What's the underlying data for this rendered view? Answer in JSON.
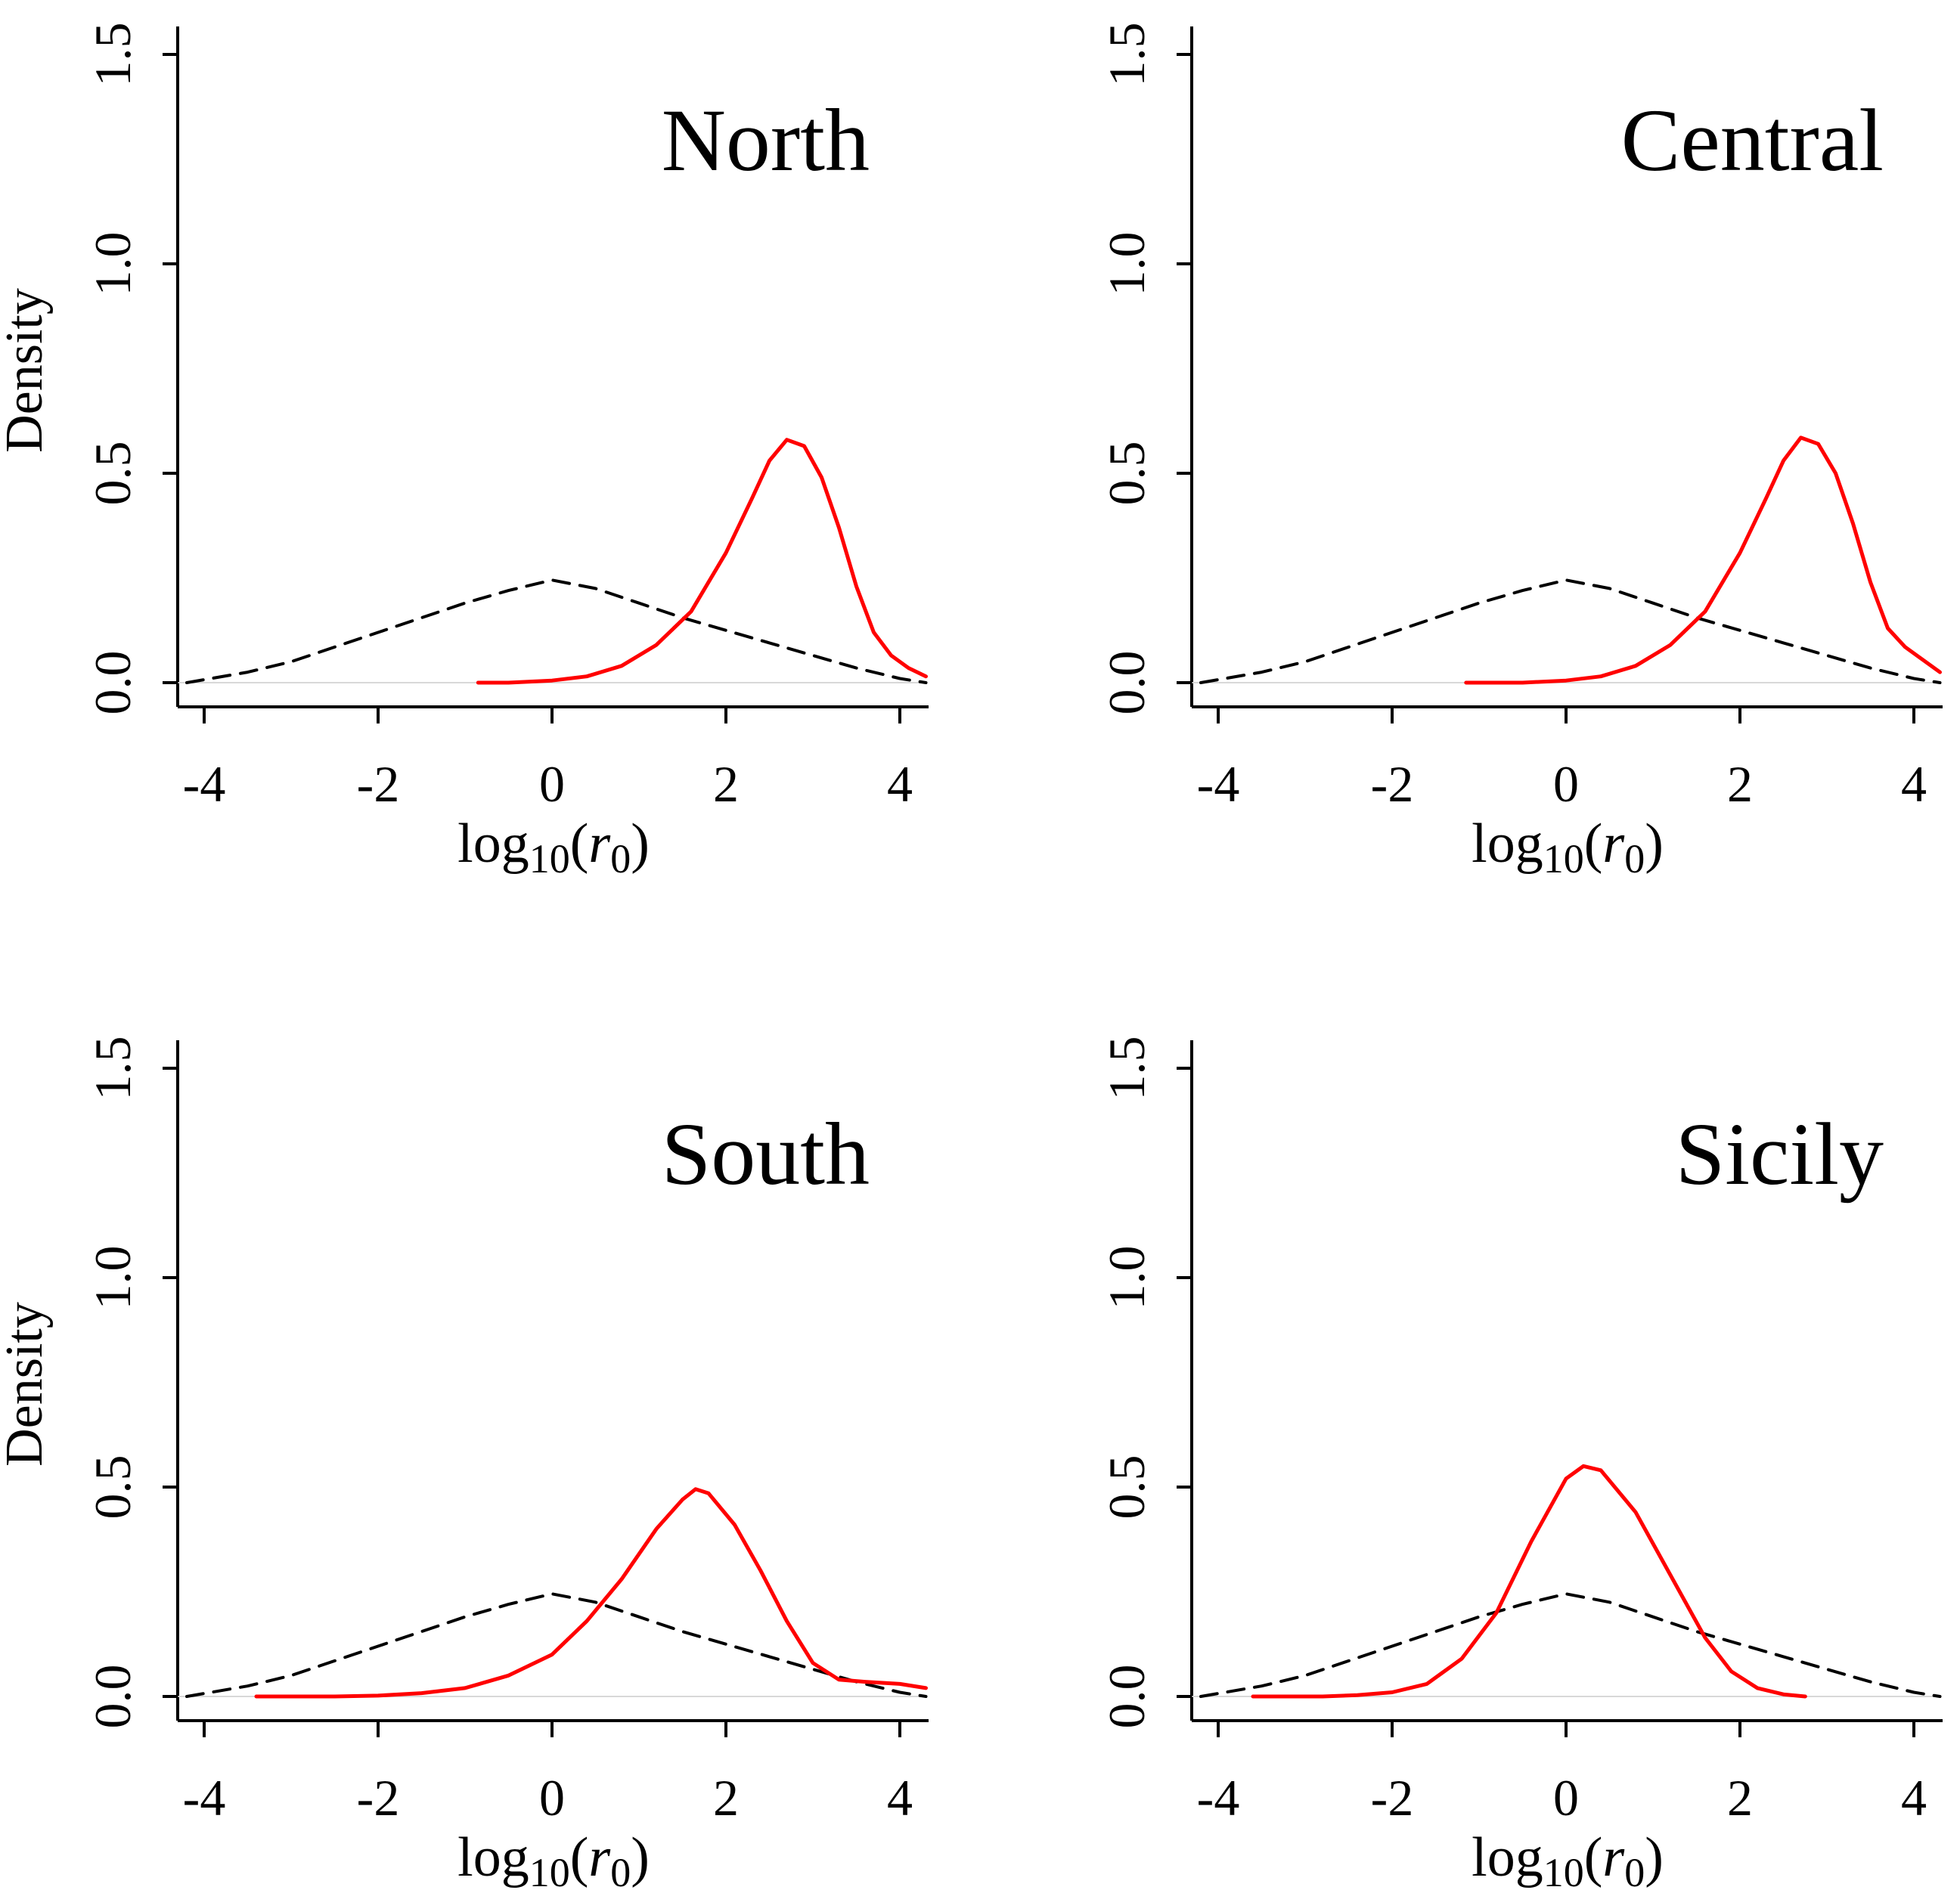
{
  "figure": {
    "background": "#ffffff"
  },
  "chart_data": [
    {
      "type": "line",
      "title": "North",
      "xlabel": "log10(r0)",
      "ylabel": "Density",
      "xlim": [
        -4.3,
        4.3
      ],
      "ylim": [
        0,
        1.5
      ],
      "xticks": [
        -4,
        -2,
        0,
        2,
        4
      ],
      "yticks": [
        0.0,
        0.5,
        1.0,
        1.5
      ],
      "grid": false,
      "series": [
        {
          "color": "#000000",
          "style": "dashed",
          "x": [
            -4.2,
            -3.5,
            -3,
            -2.5,
            -2,
            -1.5,
            -1,
            -0.5,
            0,
            0.5,
            1,
            1.5,
            2,
            2.5,
            3,
            3.5,
            4,
            4.3
          ],
          "y": [
            0.0,
            0.025,
            0.05,
            0.085,
            0.12,
            0.155,
            0.19,
            0.22,
            0.245,
            0.225,
            0.19,
            0.155,
            0.125,
            0.095,
            0.065,
            0.035,
            0.01,
            0.0
          ]
        },
        {
          "color": "#ff0000",
          "style": "solid",
          "x": [
            -0.85,
            -0.5,
            0,
            0.4,
            0.8,
            1.2,
            1.6,
            2.0,
            2.3,
            2.5,
            2.7,
            2.9,
            3.1,
            3.3,
            3.5,
            3.7,
            3.9,
            4.1,
            4.3
          ],
          "y": [
            0.0,
            0.0,
            0.005,
            0.015,
            0.04,
            0.09,
            0.17,
            0.31,
            0.44,
            0.53,
            0.58,
            0.565,
            0.49,
            0.37,
            0.23,
            0.12,
            0.065,
            0.035,
            0.015
          ]
        }
      ]
    },
    {
      "type": "line",
      "title": "Central",
      "xlabel": "log10(r0)",
      "ylabel": "",
      "xlim": [
        -4.3,
        4.3
      ],
      "ylim": [
        0,
        1.5
      ],
      "xticks": [
        -4,
        -2,
        0,
        2,
        4
      ],
      "yticks": [
        0.0,
        0.5,
        1.0,
        1.5
      ],
      "grid": false,
      "series": [
        {
          "color": "#000000",
          "style": "dashed",
          "x": [
            -4.2,
            -3.5,
            -3,
            -2.5,
            -2,
            -1.5,
            -1,
            -0.5,
            0,
            0.5,
            1,
            1.5,
            2,
            2.5,
            3,
            3.5,
            4,
            4.3
          ],
          "y": [
            0.0,
            0.025,
            0.05,
            0.085,
            0.12,
            0.155,
            0.19,
            0.22,
            0.245,
            0.225,
            0.19,
            0.155,
            0.125,
            0.095,
            0.065,
            0.035,
            0.01,
            0.0
          ]
        },
        {
          "color": "#ff0000",
          "style": "solid",
          "x": [
            -1.15,
            -0.5,
            0,
            0.4,
            0.8,
            1.2,
            1.6,
            2.0,
            2.3,
            2.5,
            2.7,
            2.9,
            3.1,
            3.3,
            3.5,
            3.7,
            3.9,
            4.1,
            4.3
          ],
          "y": [
            0.0,
            0.0,
            0.005,
            0.015,
            0.04,
            0.09,
            0.17,
            0.31,
            0.44,
            0.53,
            0.585,
            0.57,
            0.5,
            0.38,
            0.24,
            0.13,
            0.085,
            0.055,
            0.025
          ]
        }
      ]
    },
    {
      "type": "line",
      "title": "South",
      "xlabel": "log10(r0)",
      "ylabel": "Density",
      "xlim": [
        -4.3,
        4.3
      ],
      "ylim": [
        0,
        1.5
      ],
      "xticks": [
        -4,
        -2,
        0,
        2,
        4
      ],
      "yticks": [
        0.0,
        0.5,
        1.0,
        1.5
      ],
      "grid": false,
      "series": [
        {
          "color": "#000000",
          "style": "dashed",
          "x": [
            -4.2,
            -3.5,
            -3,
            -2.5,
            -2,
            -1.5,
            -1,
            -0.5,
            0,
            0.5,
            1,
            1.5,
            2,
            2.5,
            3,
            3.5,
            4,
            4.3
          ],
          "y": [
            0.0,
            0.025,
            0.05,
            0.085,
            0.12,
            0.155,
            0.19,
            0.22,
            0.245,
            0.225,
            0.19,
            0.155,
            0.125,
            0.095,
            0.065,
            0.035,
            0.01,
            0.0
          ]
        },
        {
          "color": "#ff0000",
          "style": "solid",
          "x": [
            -3.4,
            -2.5,
            -2,
            -1.5,
            -1,
            -0.5,
            0,
            0.4,
            0.8,
            1.2,
            1.5,
            1.65,
            1.8,
            2.1,
            2.4,
            2.7,
            3.0,
            3.3,
            3.6,
            4.0,
            4.3
          ],
          "y": [
            0.0,
            0.0,
            0.002,
            0.008,
            0.02,
            0.05,
            0.1,
            0.18,
            0.28,
            0.4,
            0.47,
            0.495,
            0.485,
            0.41,
            0.3,
            0.18,
            0.08,
            0.04,
            0.035,
            0.03,
            0.02
          ]
        }
      ]
    },
    {
      "type": "line",
      "title": "Sicily",
      "xlabel": "log10(r0)",
      "ylabel": "",
      "xlim": [
        -4.3,
        4.3
      ],
      "ylim": [
        0,
        1.5
      ],
      "xticks": [
        -4,
        -2,
        0,
        2,
        4
      ],
      "yticks": [
        0.0,
        0.5,
        1.0,
        1.5
      ],
      "grid": false,
      "series": [
        {
          "color": "#000000",
          "style": "dashed",
          "x": [
            -4.2,
            -3.5,
            -3,
            -2.5,
            -2,
            -1.5,
            -1,
            -0.5,
            0,
            0.5,
            1,
            1.5,
            2,
            2.5,
            3,
            3.5,
            4,
            4.3
          ],
          "y": [
            0.0,
            0.025,
            0.05,
            0.085,
            0.12,
            0.155,
            0.19,
            0.22,
            0.245,
            0.225,
            0.19,
            0.155,
            0.125,
            0.095,
            0.065,
            0.035,
            0.01,
            0.0
          ]
        },
        {
          "color": "#ff0000",
          "style": "solid",
          "x": [
            -3.6,
            -2.8,
            -2.4,
            -2,
            -1.6,
            -1.2,
            -0.8,
            -0.4,
            0,
            0.2,
            0.4,
            0.8,
            1.2,
            1.6,
            1.9,
            2.2,
            2.5,
            2.75
          ],
          "y": [
            0.0,
            0.0,
            0.003,
            0.01,
            0.03,
            0.09,
            0.2,
            0.37,
            0.52,
            0.55,
            0.54,
            0.44,
            0.29,
            0.14,
            0.06,
            0.02,
            0.005,
            0.0
          ]
        }
      ]
    }
  ]
}
